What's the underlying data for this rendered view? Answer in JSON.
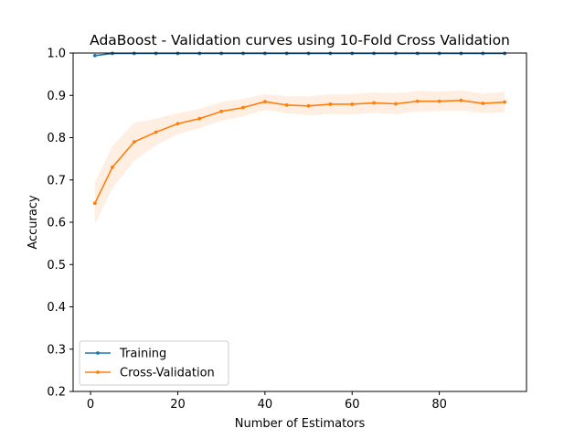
{
  "chart_data": {
    "type": "line",
    "title": "AdaBoost - Validation curves using 10-Fold Cross Validation",
    "xlabel": "Number of Estimators",
    "ylabel": "Accuracy",
    "xlim": [
      -4,
      100
    ],
    "ylim": [
      0.2,
      1.0
    ],
    "xticks": [
      0,
      20,
      40,
      60,
      80
    ],
    "yticks": [
      0.2,
      0.3,
      0.4,
      0.5,
      0.6,
      0.7,
      0.8,
      0.9,
      1.0
    ],
    "xtick_labels": [
      "0",
      "20",
      "40",
      "60",
      "80"
    ],
    "ytick_labels": [
      "0.2",
      "0.3",
      "0.4",
      "0.5",
      "0.6",
      "0.7",
      "0.8",
      "0.9",
      "1.0"
    ],
    "grid": false,
    "legend_position": "lower-left",
    "x": [
      1,
      5,
      10,
      15,
      20,
      25,
      30,
      35,
      40,
      45,
      50,
      55,
      60,
      65,
      70,
      75,
      80,
      85,
      90,
      95
    ],
    "series": [
      {
        "name": "Training",
        "color": "#1f77b4",
        "values": [
          0.994,
          0.999,
          0.999,
          0.999,
          0.999,
          0.999,
          0.999,
          0.999,
          0.999,
          0.999,
          0.999,
          0.999,
          0.999,
          0.999,
          0.999,
          0.999,
          0.999,
          0.999,
          0.999,
          0.999
        ],
        "band_lower": [
          0.992,
          0.998,
          0.998,
          0.998,
          0.998,
          0.998,
          0.998,
          0.998,
          0.998,
          0.998,
          0.998,
          0.998,
          0.998,
          0.998,
          0.998,
          0.998,
          0.998,
          0.998,
          0.998,
          0.998
        ],
        "band_upper": [
          0.996,
          1.0,
          1.0,
          1.0,
          1.0,
          1.0,
          1.0,
          1.0,
          1.0,
          1.0,
          1.0,
          1.0,
          1.0,
          1.0,
          1.0,
          1.0,
          1.0,
          1.0,
          1.0,
          1.0
        ]
      },
      {
        "name": "Cross-Validation",
        "color": "#ff7f0e",
        "values": [
          0.645,
          0.73,
          0.79,
          0.813,
          0.833,
          0.845,
          0.862,
          0.871,
          0.885,
          0.877,
          0.875,
          0.879,
          0.879,
          0.882,
          0.88,
          0.886,
          0.886,
          0.888,
          0.881,
          0.884
        ],
        "band_lower": [
          0.595,
          0.68,
          0.745,
          0.782,
          0.808,
          0.822,
          0.84,
          0.85,
          0.866,
          0.857,
          0.853,
          0.856,
          0.855,
          0.858,
          0.856,
          0.862,
          0.863,
          0.864,
          0.858,
          0.86
        ],
        "band_upper": [
          0.695,
          0.78,
          0.835,
          0.845,
          0.858,
          0.868,
          0.885,
          0.892,
          0.903,
          0.898,
          0.898,
          0.903,
          0.903,
          0.907,
          0.905,
          0.91,
          0.909,
          0.912,
          0.904,
          0.908
        ]
      }
    ]
  }
}
